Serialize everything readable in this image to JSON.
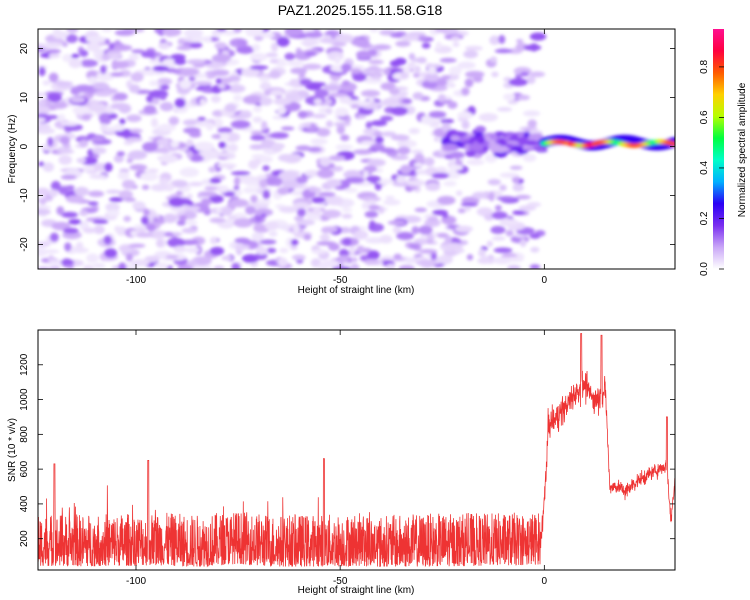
{
  "title": "PAZ1.2025.155.11.58.G18",
  "chart_data": [
    {
      "type": "heatmap",
      "xlabel": "Height of straight line (km)",
      "ylabel": "Frequency (Hz)",
      "xlim": [
        -124,
        32
      ],
      "ylim": [
        -25,
        24
      ],
      "xticks": [
        -100,
        -50,
        0
      ],
      "yticks": [
        -20,
        -10,
        0,
        10,
        20
      ],
      "colorbar": {
        "label": "Normalized spectral amplitude",
        "range": [
          0.0,
          0.95
        ],
        "ticks": [
          "0.0",
          "0.2",
          "0.4",
          "0.6",
          "0.8"
        ],
        "tick_values": [
          0.0,
          0.2,
          0.4,
          0.6,
          0.8
        ],
        "colors": [
          "#ffffff",
          "#c9a6f7",
          "#7a2ef0",
          "#2a00f5",
          "#00b0ff",
          "#00ffc8",
          "#00ff40",
          "#b6ff00",
          "#ffd000",
          "#ff5a00",
          "#ff0040",
          "#ff1090"
        ]
      },
      "features": [
        {
          "region": "x < -20 km",
          "description": "scattered noise, amplitude 0.0-0.15 across all frequencies"
        },
        {
          "region": "-24 to 0 km",
          "description": "noise concentrating toward 0 Hz, amplitude up to 0.2"
        },
        {
          "region": "0 to 32 km",
          "description": "narrow band at ~0.5 Hz (width ~3 Hz), amplitude 0.3-0.95"
        }
      ]
    },
    {
      "type": "line",
      "xlabel": "Height of straight line (km)",
      "ylabel": "SNR (10 * v/v)",
      "xlim": [
        -124,
        32
      ],
      "ylim": [
        20,
        1400
      ],
      "xticks": [
        -100,
        -50,
        0
      ],
      "yticks": [
        200,
        400,
        600,
        800,
        1000,
        1200
      ],
      "color": "#ee3333",
      "series": [
        {
          "x": [
            -124,
            -115,
            -100,
            -95,
            -85,
            -75,
            -66,
            -55,
            -50,
            -45,
            -40,
            -30,
            -20,
            -10,
            -5,
            -1,
            0,
            1,
            3,
            5,
            8,
            10,
            12,
            14,
            15,
            16,
            18,
            20,
            22,
            25,
            28,
            30,
            31,
            32
          ],
          "y": [
            170,
            160,
            170,
            180,
            150,
            200,
            150,
            155,
            160,
            170,
            140,
            160,
            165,
            175,
            180,
            190,
            400,
            850,
            900,
            950,
            1050,
            1080,
            1000,
            1020,
            1050,
            500,
            500,
            470,
            520,
            560,
            600,
            620,
            300,
            550
          ],
          "peaks": [
            {
              "x": -120,
              "y": 630
            },
            {
              "x": -97,
              "y": 650
            },
            {
              "x": -54,
              "y": 660
            },
            {
              "x": 9,
              "y": 1380
            },
            {
              "x": 14,
              "y": 1370
            },
            {
              "x": 30,
              "y": 900
            }
          ],
          "band_low": 40,
          "band_high": 420
        }
      ]
    }
  ]
}
